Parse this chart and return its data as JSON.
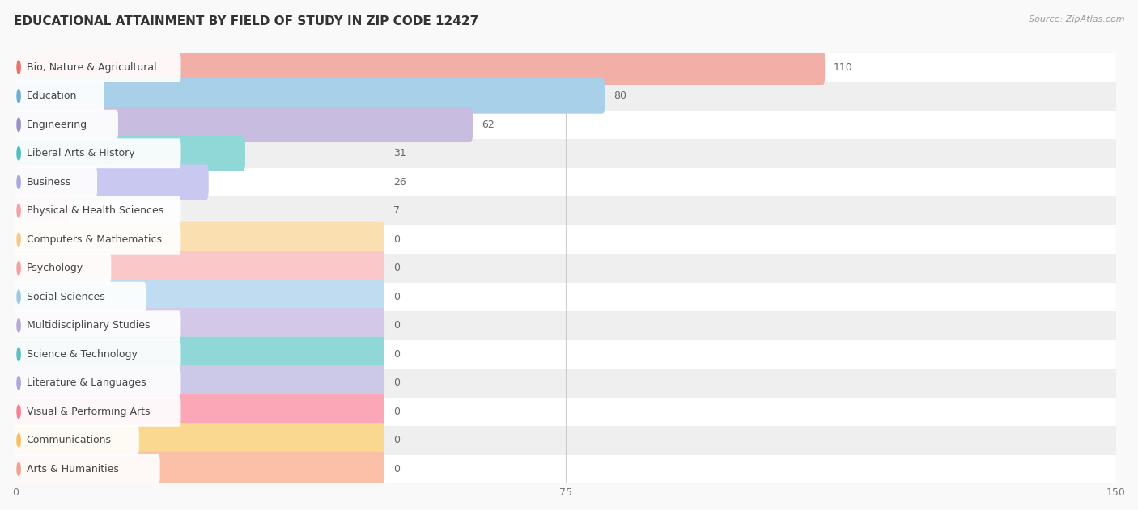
{
  "title": "EDUCATIONAL ATTAINMENT BY FIELD OF STUDY IN ZIP CODE 12427",
  "source": "Source: ZipAtlas.com",
  "categories": [
    "Bio, Nature & Agricultural",
    "Education",
    "Engineering",
    "Liberal Arts & History",
    "Business",
    "Physical & Health Sciences",
    "Computers & Mathematics",
    "Psychology",
    "Social Sciences",
    "Multidisciplinary Studies",
    "Science & Technology",
    "Literature & Languages",
    "Visual & Performing Arts",
    "Communications",
    "Arts & Humanities"
  ],
  "values": [
    110,
    80,
    62,
    31,
    26,
    7,
    0,
    0,
    0,
    0,
    0,
    0,
    0,
    0,
    0
  ],
  "bar_colors": [
    "#E8736A",
    "#6BAED6",
    "#9B8DC8",
    "#4DBFBF",
    "#A8A8E0",
    "#F4A0A8",
    "#F5C98A",
    "#F4A0A0",
    "#9ECAE1",
    "#B8A8D8",
    "#5FBFBF",
    "#ABA8D8",
    "#F48090",
    "#F5C060",
    "#F4A090"
  ],
  "bar_bg_colors": [
    "#F2AFA8",
    "#A8D0E8",
    "#C8BDE0",
    "#90D8D8",
    "#C8C8F0",
    "#FAC8D0",
    "#FAE0B0",
    "#FAC8C8",
    "#C0DCF0",
    "#D4C8E8",
    "#90D8D8",
    "#CCC8E8",
    "#FAA8B8",
    "#FAD890",
    "#FAC0A8"
  ],
  "xlim": [
    0,
    150
  ],
  "xticks": [
    0,
    75,
    150
  ],
  "background_color": "#f9f9f9",
  "title_fontsize": 11,
  "label_fontsize": 9,
  "value_fontsize": 9,
  "zero_bar_width": 50
}
